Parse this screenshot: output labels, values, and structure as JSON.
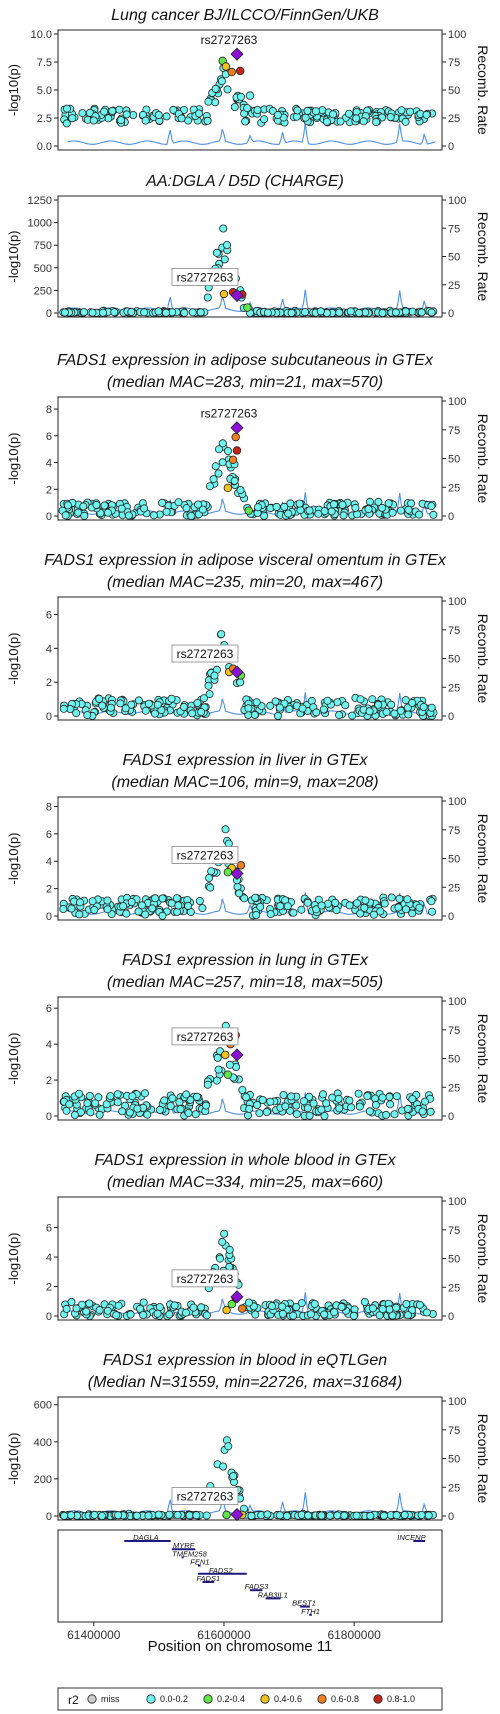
{
  "x_axis": {
    "label": "Position on chromosome 11",
    "range": [
      61345000,
      61935000
    ],
    "ticks": [
      61400000,
      61600000,
      61800000
    ],
    "tick_labels": [
      "61400000",
      "61600000",
      "61800000"
    ]
  },
  "y2_axis": {
    "label": "Recomb. Rate",
    "range": [
      0,
      100
    ],
    "ticks": [
      0,
      25,
      50,
      75,
      100
    ],
    "tick_labels": [
      "0",
      "25",
      "50",
      "75",
      "100"
    ]
  },
  "y_label": "-log10(p)",
  "lead_snp": {
    "label": "rs2727263",
    "position": 61620000
  },
  "legend": {
    "title": "r2",
    "items": [
      {
        "label": "miss",
        "color": "#cccccc"
      },
      {
        "label": "0.0-0.2",
        "color": "#6ef5f0"
      },
      {
        "label": "0.2-0.4",
        "color": "#61e64a"
      },
      {
        "label": "0.4-0.6",
        "color": "#f2c21d"
      },
      {
        "label": "0.6-0.8",
        "color": "#f07e1f"
      },
      {
        "label": "0.8-1.0",
        "color": "#c4261a"
      }
    ]
  },
  "colors": {
    "lead": "#8b0fd6",
    "recomb_line": "#4d8fe8",
    "gene": "#1a1a80"
  },
  "chart_data": [
    {
      "type": "scatter",
      "title_lines": [
        "Lung cancer BJ/ILCCO/FinnGen/UKB"
      ],
      "ylim": [
        0,
        10
      ],
      "y_ticks": [
        0,
        2.5,
        5,
        7.5,
        10
      ],
      "y_tick_labels": [
        "0.0",
        "2.5",
        "5.0",
        "7.5",
        "10.0"
      ],
      "lead_value": 8.2,
      "lead_label_style": "plain",
      "peak_height": 7.0,
      "background": {
        "base": 2.6,
        "spread": 0.6,
        "noise": 0.5
      },
      "highlight_points": [
        {
          "x": 61598000,
          "y": 7.6,
          "r2": "0.2-0.4"
        },
        {
          "x": 61603000,
          "y": 7.1,
          "r2": "0.4-0.6"
        },
        {
          "x": 61612000,
          "y": 6.6,
          "r2": "0.6-0.8"
        },
        {
          "x": 61625000,
          "y": 6.7,
          "r2": "0.8-1.0"
        },
        {
          "x": 61640000,
          "y": 4.5,
          "r2": "0.0-0.2"
        }
      ]
    },
    {
      "type": "scatter",
      "title_lines": [
        "AA:DGLA / D5D (CHARGE)"
      ],
      "ylim": [
        0,
        1250
      ],
      "y_ticks": [
        0,
        250,
        500,
        750,
        1000,
        1250
      ],
      "y_tick_labels": [
        "0",
        "250",
        "500",
        "750",
        "1000",
        "1250"
      ],
      "lead_value": 195,
      "lead_label_style": "boxed",
      "peak_height": 1000,
      "background": {
        "base": 0,
        "spread": 8,
        "noise": 6
      },
      "highlight_points": [
        {
          "x": 61600000,
          "y": 210,
          "r2": "0.4-0.6"
        },
        {
          "x": 61614000,
          "y": 230,
          "r2": "0.8-1.0"
        },
        {
          "x": 61628000,
          "y": 205,
          "r2": "0.8-1.0"
        },
        {
          "x": 61636000,
          "y": 60,
          "r2": "0.2-0.4"
        }
      ]
    },
    {
      "type": "scatter",
      "title_lines": [
        "FADS1 expression in adipose subcutaneous in GTEx",
        "(median MAC=283, min=21, max=570)"
      ],
      "ylim": [
        0,
        8.6
      ],
      "y_ticks": [
        0,
        2,
        4,
        6,
        8
      ],
      "y_tick_labels": [
        "0",
        "2",
        "4",
        "6",
        "8"
      ],
      "lead_value": 6.6,
      "lead_label_style": "plain",
      "peak_height": 6.0,
      "background": {
        "base": 0.4,
        "spread": 0.5,
        "noise": 0.4
      },
      "highlight_points": [
        {
          "x": 61618000,
          "y": 5.9,
          "r2": "0.6-0.8"
        },
        {
          "x": 61620000,
          "y": 4.9,
          "r2": "0.8-1.0"
        },
        {
          "x": 61614000,
          "y": 4.2,
          "r2": "0.6-0.8"
        },
        {
          "x": 61606000,
          "y": 2.1,
          "r2": "0.4-0.6"
        },
        {
          "x": 61638000,
          "y": 0.4,
          "r2": "0.2-0.4"
        }
      ]
    },
    {
      "type": "scatter",
      "title_lines": [
        "FADS1 expression in adipose visceral omentum in GTEx",
        "(median MAC=235, min=20, max=467)"
      ],
      "ylim": [
        0,
        6.8
      ],
      "y_ticks": [
        0,
        2,
        4,
        6
      ],
      "y_tick_labels": [
        "0",
        "2",
        "4",
        "6"
      ],
      "lead_value": 2.6,
      "lead_label_style": "boxed",
      "peak_height": 5.4,
      "background": {
        "base": 0.4,
        "spread": 0.5,
        "noise": 0.4
      },
      "highlight_points": [
        {
          "x": 61608000,
          "y": 2.6,
          "r2": "0.4-0.6"
        },
        {
          "x": 61614000,
          "y": 2.8,
          "r2": "0.6-0.8"
        },
        {
          "x": 61626000,
          "y": 2.4,
          "r2": "0.2-0.4"
        }
      ]
    },
    {
      "type": "scatter",
      "title_lines": [
        "FADS1 expression in liver in GTEx",
        "(median MAC=106, min=9, max=208)"
      ],
      "ylim": [
        0,
        8.4
      ],
      "y_ticks": [
        0,
        2,
        4,
        6,
        8
      ],
      "y_tick_labels": [
        "0",
        "2",
        "4",
        "6",
        "8"
      ],
      "lead_value": 3.1,
      "lead_label_style": "boxed",
      "peak_height": 6.5,
      "background": {
        "base": 0.6,
        "spread": 0.6,
        "noise": 0.5
      },
      "highlight_points": [
        {
          "x": 61612000,
          "y": 3.5,
          "r2": "0.4-0.6"
        },
        {
          "x": 61626000,
          "y": 3.7,
          "r2": "0.6-0.8"
        },
        {
          "x": 61606000,
          "y": 3.2,
          "r2": "0.2-0.4"
        }
      ]
    },
    {
      "type": "scatter",
      "title_lines": [
        "FADS1 expression in lung in GTEx",
        "(median MAC=257, min=18, max=505)"
      ],
      "ylim": [
        0,
        6.4
      ],
      "y_ticks": [
        0,
        2,
        4,
        6
      ],
      "y_tick_labels": [
        "0",
        "2",
        "4",
        "6"
      ],
      "lead_value": 3.4,
      "lead_label_style": "boxed",
      "peak_height": 4.9,
      "background": {
        "base": 0.5,
        "spread": 0.6,
        "noise": 0.5
      },
      "highlight_points": [
        {
          "x": 61618000,
          "y": 4.5,
          "r2": "0.8-1.0"
        },
        {
          "x": 61610000,
          "y": 4.0,
          "r2": "0.6-0.8"
        },
        {
          "x": 61602000,
          "y": 3.4,
          "r2": "0.4-0.6"
        },
        {
          "x": 61606000,
          "y": 2.3,
          "r2": "0.2-0.4"
        }
      ]
    },
    {
      "type": "scatter",
      "title_lines": [
        "FADS1 expression in whole blood in GTEx",
        "(median MAC=334, min=25, max=660)"
      ],
      "ylim": [
        0,
        7.8
      ],
      "y_ticks": [
        0,
        2,
        4,
        6
      ],
      "y_tick_labels": [
        "0",
        "2",
        "4",
        "6"
      ],
      "lead_value": 1.3,
      "lead_label_style": "boxed",
      "peak_height": 6.0,
      "background": {
        "base": 0.3,
        "spread": 0.5,
        "noise": 0.4
      },
      "highlight_points": [
        {
          "x": 61618000,
          "y": 1.2,
          "r2": "0.8-1.0"
        },
        {
          "x": 61604000,
          "y": 0.4,
          "r2": "0.4-0.6"
        },
        {
          "x": 61628000,
          "y": 0.5,
          "r2": "0.6-0.8"
        },
        {
          "x": 61612000,
          "y": 0.8,
          "r2": "0.2-0.4"
        }
      ]
    },
    {
      "type": "scatter",
      "title_lines": [
        "FADS1 expression in blood in eQTLGen",
        "(Median N=31559, min=22726, max=31684)"
      ],
      "ylim": [
        0,
        620
      ],
      "y_ticks": [
        0,
        200,
        400,
        600
      ],
      "y_tick_labels": [
        "0",
        "200",
        "400",
        "600"
      ],
      "lead_value": 8,
      "lead_label_style": "boxed",
      "peak_height": 480,
      "background": {
        "base": 2,
        "spread": 4,
        "noise": 3
      },
      "highlight_points": [
        {
          "x": 61604000,
          "y": 6,
          "r2": "0.2-0.4"
        },
        {
          "x": 61628000,
          "y": 6,
          "r2": "0.4-0.6"
        }
      ]
    }
  ],
  "genes": [
    {
      "name": "DAGLA",
      "start": 61447000,
      "end": 61518000,
      "row": 0,
      "label_pos": 61480000
    },
    {
      "name": "INCENP",
      "start": 61891000,
      "end": 61909000,
      "row": 0,
      "label_pos": 61888000
    },
    {
      "name": "MYRF",
      "start": 61520000,
      "end": 61556000,
      "row": 1,
      "label_pos": 61538000
    },
    {
      "name": "TMEM258",
      "start": 61535000,
      "end": 61538000,
      "row": 2,
      "label_pos": 61547000
    },
    {
      "name": "FEN1",
      "start": 61560000,
      "end": 61564000,
      "row": 3,
      "label_pos": 61563000
    },
    {
      "name": "FADS2",
      "start": 61560000,
      "end": 61635000,
      "row": 4,
      "label_pos": 61595000
    },
    {
      "name": "FADS1",
      "start": 61567000,
      "end": 61585000,
      "row": 5,
      "label_pos": 61576000
    },
    {
      "name": "FADS3",
      "start": 61640000,
      "end": 61659000,
      "row": 6,
      "label_pos": 61650000
    },
    {
      "name": "RAB3IL1",
      "start": 61664000,
      "end": 61687000,
      "row": 7,
      "label_pos": 61675000
    },
    {
      "name": "BEST1",
      "start": 61717000,
      "end": 61732000,
      "row": 8,
      "label_pos": 61723000
    },
    {
      "name": "FTH1",
      "start": 61731000,
      "end": 61735000,
      "row": 9,
      "label_pos": 61733000
    }
  ]
}
